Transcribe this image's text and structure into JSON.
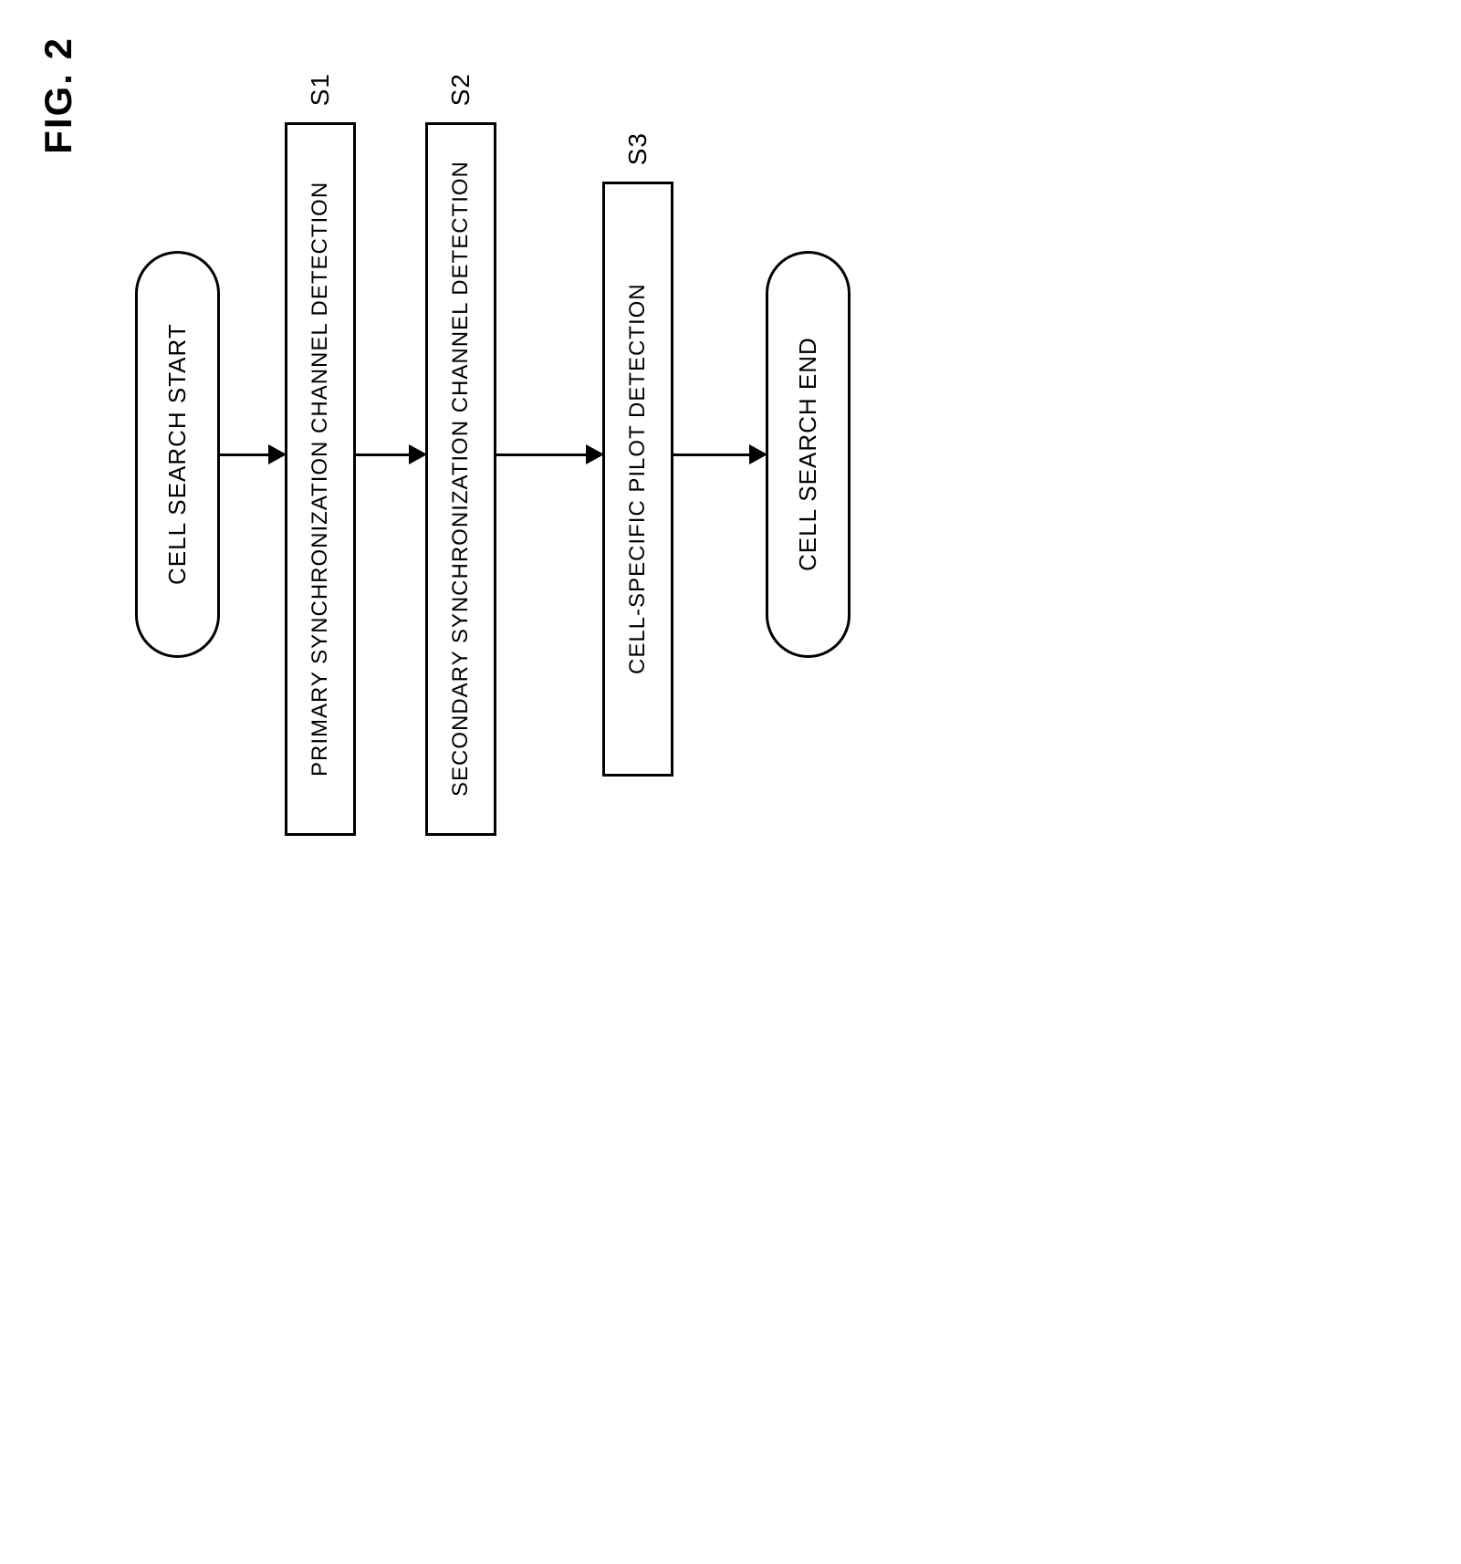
{
  "figure": {
    "label": "FIG. 2"
  },
  "flowchart": {
    "type": "flowchart",
    "orientation": "horizontal-rotated",
    "colors": {
      "background": "#ffffff",
      "border": "#000000",
      "text": "#000000",
      "arrow": "#000000"
    },
    "border_width": 3,
    "font_family": "Arial",
    "terminal_fontsize": 26,
    "process_fontsize": 24,
    "step_label_fontsize": 28,
    "figure_label_fontsize": 42,
    "nodes": [
      {
        "id": "start",
        "type": "terminal",
        "label": "CELL SEARCH START",
        "min_height": 360
      },
      {
        "id": "s1",
        "type": "process",
        "label": "PRIMARY SYNCHRONIZATION CHANNEL\nDETECTION",
        "step": "S1",
        "min_height": 740
      },
      {
        "id": "s2",
        "type": "process",
        "label": "SECONDARY SYNCHRONIZATION CHANNEL\nDETECTION",
        "step": "S2",
        "min_height": 740
      },
      {
        "id": "s3",
        "type": "process",
        "label": "CELL-SPECIFIC PILOT DETECTION",
        "step": "S3",
        "min_height": 610
      },
      {
        "id": "end",
        "type": "terminal",
        "label": "CELL SEARCH END",
        "min_height": 360
      }
    ],
    "edges": [
      {
        "from": "start",
        "to": "s1",
        "length": 55
      },
      {
        "from": "s1",
        "to": "s2",
        "length": 60
      },
      {
        "from": "s2",
        "to": "s3",
        "length": 100
      },
      {
        "from": "s3",
        "to": "end",
        "length": 85
      }
    ]
  }
}
